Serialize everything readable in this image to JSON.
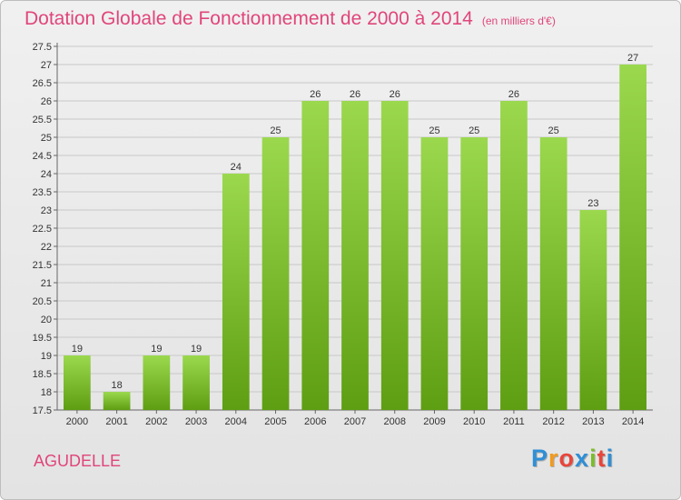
{
  "header": {
    "title": "Dotation Globale de Fonctionnement de 2000 à 2014",
    "unit": "(en milliers d'€)"
  },
  "footer": {
    "commune": "AGUDELLE",
    "logo_text": "Proxiti"
  },
  "colors": {
    "title": "#e0457b",
    "bar_top": "#9bd84e",
    "bar_bottom": "#5e9e12",
    "grid": "#c8c8c8",
    "logo": [
      "#2f8fd6",
      "#f29a1d",
      "#e8453c",
      "#2f8fd6",
      "#7cbd2a",
      "#e8453c",
      "#2f8fd6"
    ]
  },
  "chart_data": {
    "type": "bar",
    "title": "Dotation Globale de Fonctionnement de 2000 à 2014",
    "subtitle": "(en milliers d'€)",
    "xlabel": "",
    "ylabel": "",
    "categories": [
      "2000",
      "2001",
      "2002",
      "2003",
      "2004",
      "2005",
      "2006",
      "2007",
      "2008",
      "2009",
      "2010",
      "2011",
      "2012",
      "2013",
      "2014"
    ],
    "values": [
      19,
      18,
      19,
      19,
      24,
      25,
      26,
      26,
      26,
      25,
      25,
      26,
      25,
      23,
      27
    ],
    "data_labels": [
      "19",
      "18",
      "19",
      "19",
      "24",
      "25",
      "26",
      "26",
      "26",
      "25",
      "25",
      "26",
      "25",
      "23",
      "27"
    ],
    "ylim": [
      17.5,
      27.5
    ],
    "yticks": [
      "17.5",
      "18",
      "18.5",
      "19",
      "19.5",
      "20",
      "20.5",
      "21",
      "21.5",
      "22",
      "22.5",
      "23",
      "23.5",
      "24",
      "24.5",
      "25",
      "25.5",
      "26",
      "26.5",
      "27",
      "27.5"
    ],
    "grid": true,
    "legend": "none"
  }
}
